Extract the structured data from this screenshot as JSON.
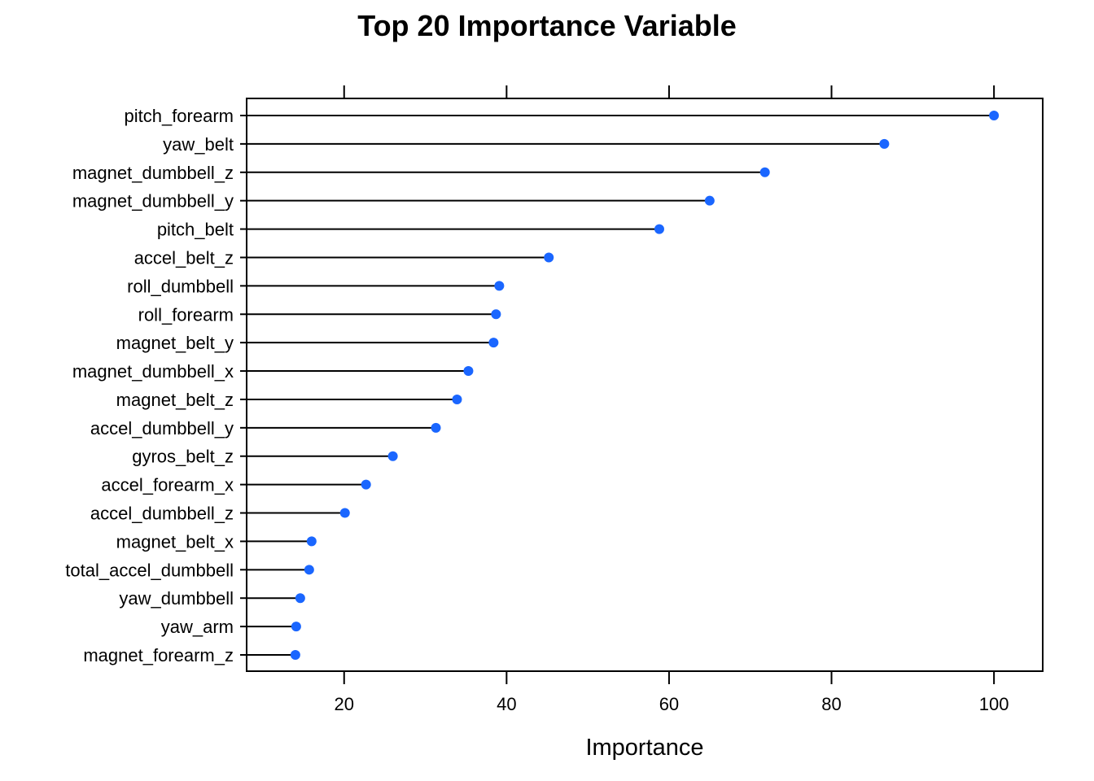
{
  "chart_data": {
    "type": "dotplot",
    "title": "Top 20 Importance Variable",
    "xlabel": "Importance",
    "ylabel": "",
    "xlim": [
      8,
      106
    ],
    "xticks": [
      "20",
      "40",
      "60",
      "80",
      "100"
    ],
    "grid": false,
    "legend": "none",
    "point_color": "#1a66ff",
    "categories": [
      "pitch_forearm",
      "yaw_belt",
      "magnet_dumbbell_z",
      "magnet_dumbbell_y",
      "pitch_belt",
      "accel_belt_z",
      "roll_dumbbell",
      "roll_forearm",
      "magnet_belt_y",
      "magnet_dumbbell_x",
      "magnet_belt_z",
      "accel_dumbbell_y",
      "gyros_belt_z",
      "accel_forearm_x",
      "accel_dumbbell_z",
      "magnet_belt_x",
      "total_accel_dumbbell",
      "yaw_dumbbell",
      "yaw_arm",
      "magnet_forearm_z"
    ],
    "values": [
      100.0,
      86.5,
      71.8,
      65.0,
      58.8,
      45.2,
      39.1,
      38.7,
      38.4,
      35.3,
      33.9,
      31.3,
      26.0,
      22.7,
      20.1,
      16.0,
      15.7,
      14.6,
      14.1,
      14.0
    ]
  }
}
